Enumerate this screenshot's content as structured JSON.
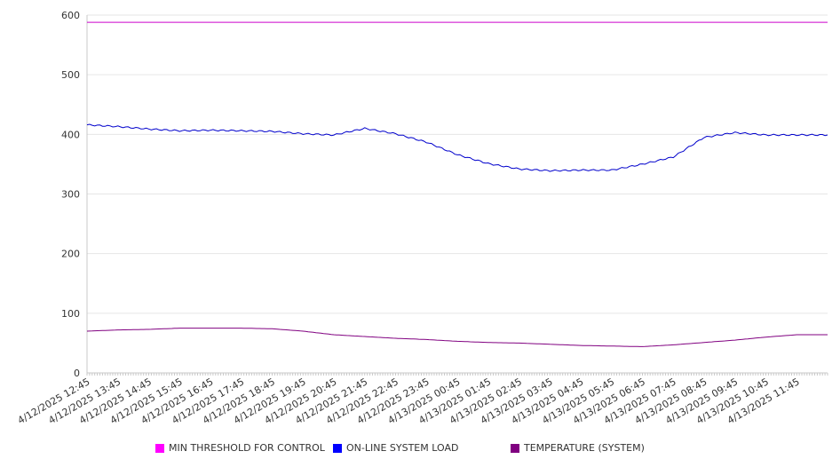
{
  "chart_data": {
    "type": "line",
    "title": "",
    "xlabel": "",
    "ylabel": "",
    "ylim": [
      0,
      600
    ],
    "yticks": [
      0,
      100,
      200,
      300,
      400,
      500,
      600
    ],
    "grid": true,
    "legend_position": "bottom",
    "x": [
      "4/12/2025 12:45",
      "4/12/2025 13:45",
      "4/12/2025 14:45",
      "4/12/2025 15:45",
      "4/12/2025 16:45",
      "4/12/2025 17:45",
      "4/12/2025 18:45",
      "4/12/2025 19:45",
      "4/12/2025 20:45",
      "4/12/2025 21:45",
      "4/12/2025 22:45",
      "4/12/2025 23:45",
      "4/13/2025 00:45",
      "4/13/2025 01:45",
      "4/13/2025 02:45",
      "4/13/2025 03:45",
      "4/13/2025 04:45",
      "4/13/2025 05:45",
      "4/13/2025 06:45",
      "4/13/2025 07:45",
      "4/13/2025 08:45",
      "4/13/2025 09:45",
      "4/13/2025 10:45",
      "4/13/2025 11:45"
    ],
    "series": [
      {
        "name": "MIN THRESHOLD FOR CONTROL",
        "color": "#cc00cc",
        "values": [
          588,
          588,
          588,
          588,
          588,
          588,
          588,
          588,
          588,
          588,
          588,
          588,
          588,
          588,
          588,
          588,
          588,
          588,
          588,
          588,
          588,
          588,
          588,
          588
        ]
      },
      {
        "name": "ON-LINE SYSTEM LOAD",
        "color": "#0000cc",
        "values": [
          416,
          413,
          409,
          406,
          407,
          406,
          405,
          401,
          399,
          410,
          401,
          387,
          366,
          351,
          342,
          339,
          340,
          340,
          350,
          362,
          395,
          403,
          399,
          399
        ]
      },
      {
        "name": "TEMPERATURE (SYSTEM)",
        "color": "#800080",
        "values": [
          70,
          72,
          73,
          75,
          75,
          75,
          74,
          70,
          64,
          61,
          58,
          56,
          53,
          51,
          50,
          48,
          46,
          45,
          44,
          47,
          51,
          55,
          60,
          64
        ]
      }
    ]
  }
}
